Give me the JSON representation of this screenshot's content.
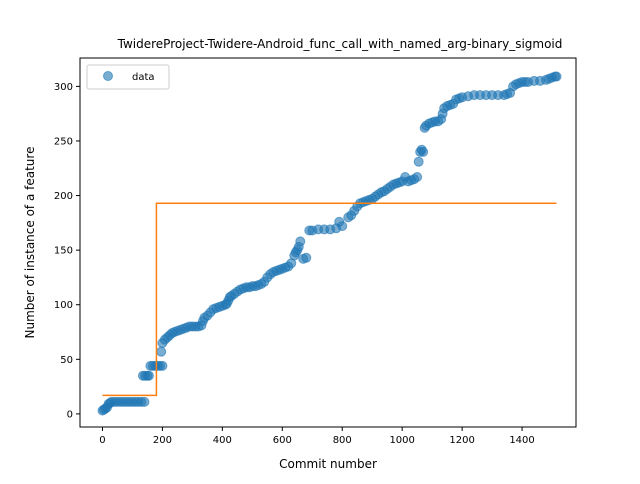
{
  "chart_data": {
    "type": "scatter",
    "title": "TwidereProject-Twidere-Android_func_call_with_named_arg-binary_sigmoid",
    "xlabel": "Commit number",
    "ylabel": "Number of instance of a feature",
    "xlim": [
      -75,
      1580
    ],
    "ylim": [
      -12,
      326
    ],
    "xticks": [
      0,
      200,
      400,
      600,
      800,
      1000,
      1200,
      1400
    ],
    "yticks": [
      0,
      50,
      100,
      150,
      200,
      250,
      300
    ],
    "grid": false,
    "legend": {
      "location": "upper left",
      "entries": [
        "data"
      ]
    },
    "series": [
      {
        "name": "data",
        "kind": "scatter",
        "color": "#1f77b4",
        "alpha": 0.6,
        "points": [
          [
            0,
            3
          ],
          [
            5,
            4
          ],
          [
            10,
            5
          ],
          [
            15,
            6
          ],
          [
            20,
            9
          ],
          [
            25,
            10
          ],
          [
            30,
            11
          ],
          [
            40,
            11
          ],
          [
            50,
            11
          ],
          [
            60,
            11
          ],
          [
            70,
            11
          ],
          [
            80,
            11
          ],
          [
            90,
            11
          ],
          [
            100,
            11
          ],
          [
            110,
            11
          ],
          [
            120,
            11
          ],
          [
            130,
            11
          ],
          [
            140,
            11
          ],
          [
            135,
            35
          ],
          [
            142,
            35
          ],
          [
            150,
            35
          ],
          [
            155,
            35
          ],
          [
            160,
            44
          ],
          [
            168,
            44
          ],
          [
            176,
            44
          ],
          [
            184,
            44
          ],
          [
            192,
            44
          ],
          [
            200,
            44
          ],
          [
            196,
            57
          ],
          [
            200,
            65
          ],
          [
            208,
            68
          ],
          [
            216,
            70
          ],
          [
            224,
            72
          ],
          [
            232,
            74
          ],
          [
            240,
            75
          ],
          [
            250,
            76
          ],
          [
            260,
            77
          ],
          [
            270,
            78
          ],
          [
            280,
            79
          ],
          [
            290,
            80
          ],
          [
            300,
            80
          ],
          [
            310,
            80
          ],
          [
            320,
            80
          ],
          [
            330,
            81
          ],
          [
            335,
            85
          ],
          [
            340,
            88
          ],
          [
            350,
            90
          ],
          [
            360,
            93
          ],
          [
            370,
            96
          ],
          [
            380,
            97
          ],
          [
            390,
            98
          ],
          [
            400,
            99
          ],
          [
            410,
            100
          ],
          [
            415,
            101
          ],
          [
            420,
            104
          ],
          [
            425,
            107
          ],
          [
            430,
            108
          ],
          [
            440,
            110
          ],
          [
            450,
            112
          ],
          [
            460,
            114
          ],
          [
            470,
            115
          ],
          [
            480,
            116
          ],
          [
            490,
            116
          ],
          [
            500,
            117
          ],
          [
            510,
            117
          ],
          [
            520,
            118
          ],
          [
            530,
            119
          ],
          [
            540,
            121
          ],
          [
            550,
            125
          ],
          [
            560,
            128
          ],
          [
            570,
            130
          ],
          [
            580,
            131
          ],
          [
            590,
            132
          ],
          [
            600,
            133
          ],
          [
            610,
            134
          ],
          [
            620,
            135
          ],
          [
            630,
            138
          ],
          [
            640,
            145
          ],
          [
            645,
            148
          ],
          [
            650,
            150
          ],
          [
            655,
            153
          ],
          [
            660,
            158
          ],
          [
            670,
            142
          ],
          [
            680,
            143
          ],
          [
            690,
            168
          ],
          [
            700,
            168
          ],
          [
            720,
            169
          ],
          [
            740,
            169
          ],
          [
            760,
            169
          ],
          [
            780,
            170
          ],
          [
            800,
            172
          ],
          [
            790,
            176
          ],
          [
            820,
            180
          ],
          [
            830,
            182
          ],
          [
            840,
            186
          ],
          [
            850,
            190
          ],
          [
            860,
            193
          ],
          [
            870,
            194
          ],
          [
            880,
            195
          ],
          [
            890,
            196
          ],
          [
            900,
            197
          ],
          [
            910,
            199
          ],
          [
            920,
            201
          ],
          [
            930,
            203
          ],
          [
            940,
            204
          ],
          [
            950,
            206
          ],
          [
            960,
            208
          ],
          [
            970,
            210
          ],
          [
            980,
            211
          ],
          [
            990,
            212
          ],
          [
            1000,
            213
          ],
          [
            1010,
            217
          ],
          [
            1020,
            213
          ],
          [
            1030,
            214
          ],
          [
            1040,
            215
          ],
          [
            1050,
            217
          ],
          [
            1055,
            231
          ],
          [
            1060,
            240
          ],
          [
            1065,
            242
          ],
          [
            1070,
            240
          ],
          [
            1075,
            262
          ],
          [
            1080,
            264
          ],
          [
            1090,
            266
          ],
          [
            1100,
            267
          ],
          [
            1110,
            268
          ],
          [
            1120,
            268
          ],
          [
            1130,
            270
          ],
          [
            1135,
            275
          ],
          [
            1140,
            280
          ],
          [
            1150,
            282
          ],
          [
            1160,
            283
          ],
          [
            1170,
            284
          ],
          [
            1180,
            288
          ],
          [
            1190,
            289
          ],
          [
            1200,
            290
          ],
          [
            1220,
            291
          ],
          [
            1240,
            292
          ],
          [
            1260,
            292
          ],
          [
            1280,
            292
          ],
          [
            1300,
            292
          ],
          [
            1320,
            292
          ],
          [
            1340,
            292
          ],
          [
            1350,
            293
          ],
          [
            1360,
            294
          ],
          [
            1370,
            300
          ],
          [
            1380,
            302
          ],
          [
            1390,
            303
          ],
          [
            1400,
            304
          ],
          [
            1410,
            304
          ],
          [
            1420,
            304
          ],
          [
            1440,
            305
          ],
          [
            1460,
            305
          ],
          [
            1480,
            306
          ],
          [
            1490,
            307
          ],
          [
            1500,
            308
          ],
          [
            1510,
            309
          ],
          [
            1515,
            309
          ]
        ]
      },
      {
        "name": "",
        "kind": "step",
        "color": "#ff7f0e",
        "points": [
          [
            0,
            17
          ],
          [
            180,
            17
          ],
          [
            180,
            193
          ],
          [
            1515,
            193
          ]
        ]
      }
    ]
  }
}
